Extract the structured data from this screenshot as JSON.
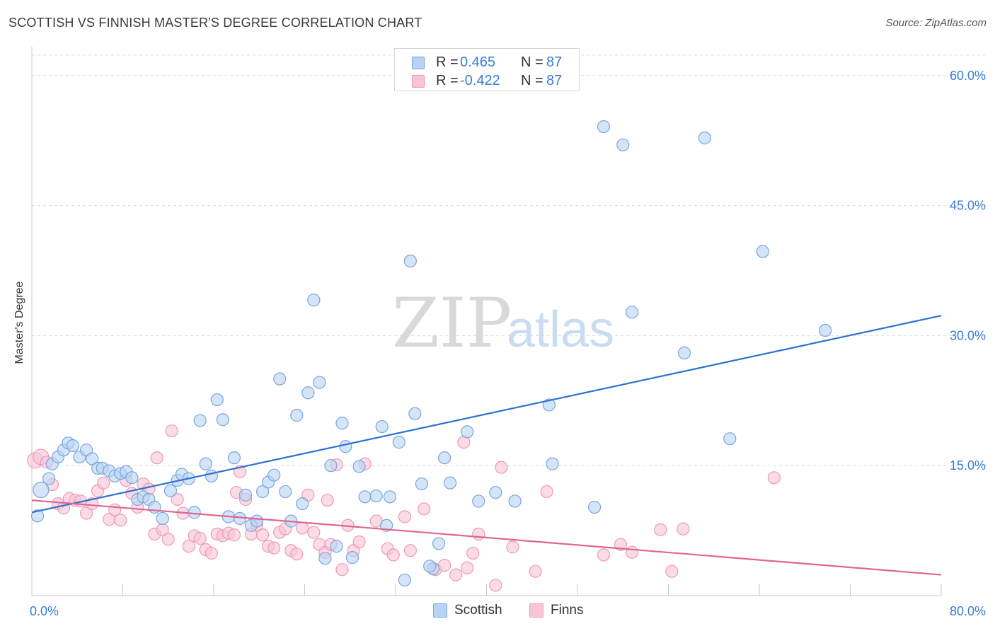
{
  "title": "SCOTTISH VS FINNISH MASTER'S DEGREE CORRELATION CHART",
  "source": "Source: ZipAtlas.com",
  "watermark": {
    "part1": "ZIP",
    "part2": "atlas"
  },
  "legend_top": {
    "rows": [
      {
        "swatch_fill": "#b8d3f3",
        "swatch_stroke": "#7aa6dc",
        "r_label": "R =",
        "r_value": "0.465",
        "n_label": "N =",
        "n_value": "87"
      },
      {
        "swatch_fill": "#f9c5d6",
        "swatch_stroke": "#ee9ab5",
        "r_label": "R =",
        "r_value": "-0.422",
        "n_label": "N =",
        "n_value": "87"
      }
    ]
  },
  "legend_bottom": {
    "items": [
      {
        "label": "Scottish",
        "swatch_fill": "#b8d3f3",
        "swatch_stroke": "#7aa6dc"
      },
      {
        "label": "Finns",
        "swatch_fill": "#f9c5d6",
        "swatch_stroke": "#ee9ab5"
      }
    ]
  },
  "chart_data": {
    "type": "scatter",
    "title": "SCOTTISH VS FINNISH MASTER'S DEGREE CORRELATION CHART",
    "xlabel": "",
    "ylabel": "Master's Degree",
    "xlim": [
      0,
      80
    ],
    "ylim": [
      0,
      63
    ],
    "x_tick_labels": [
      {
        "value": 0,
        "label": "0.0%"
      },
      {
        "value": 80,
        "label": "80.0%"
      }
    ],
    "y_tick_labels": [
      {
        "value": 15,
        "label": "15.0%"
      },
      {
        "value": 30,
        "label": "30.0%"
      },
      {
        "value": 45,
        "label": "45.0%"
      },
      {
        "value": 60,
        "label": "60.0%"
      }
    ],
    "grid": "horizontal dashed",
    "legend_position": "top-center",
    "series": [
      {
        "name": "Scottish",
        "color": "#7aa6dc",
        "fill": "#b8d3f3",
        "line_color": "#2d72d2",
        "r": 0.465,
        "n": 87,
        "trend": {
          "x": [
            0,
            80
          ],
          "y": [
            9.6,
            32.3
          ]
        },
        "points": [
          [
            0.5,
            9.2
          ],
          [
            0.8,
            12.2
          ],
          [
            1.5,
            13.5
          ],
          [
            1.8,
            15.2
          ],
          [
            2.3,
            16.0
          ],
          [
            2.8,
            16.8
          ],
          [
            3.2,
            17.6
          ],
          [
            3.6,
            17.3
          ],
          [
            4.2,
            16.0
          ],
          [
            4.8,
            16.8
          ],
          [
            5.3,
            15.8
          ],
          [
            5.8,
            14.7
          ],
          [
            6.2,
            14.7
          ],
          [
            6.8,
            14.4
          ],
          [
            7.3,
            13.8
          ],
          [
            7.8,
            14.1
          ],
          [
            8.3,
            14.3
          ],
          [
            8.8,
            13.6
          ],
          [
            9.3,
            11.1
          ],
          [
            9.8,
            11.4
          ],
          [
            10.3,
            11.1
          ],
          [
            10.8,
            10.2
          ],
          [
            11.5,
            8.9
          ],
          [
            12.2,
            12.1
          ],
          [
            12.8,
            13.3
          ],
          [
            13.2,
            14.0
          ],
          [
            13.8,
            13.5
          ],
          [
            14.3,
            9.6
          ],
          [
            14.8,
            20.2
          ],
          [
            15.3,
            15.2
          ],
          [
            15.8,
            13.8
          ],
          [
            16.3,
            22.6
          ],
          [
            16.8,
            20.3
          ],
          [
            17.3,
            9.1
          ],
          [
            17.8,
            15.9
          ],
          [
            18.3,
            8.9
          ],
          [
            18.8,
            11.6
          ],
          [
            19.3,
            8.1
          ],
          [
            19.8,
            8.6
          ],
          [
            20.3,
            12.0
          ],
          [
            20.8,
            13.1
          ],
          [
            21.3,
            13.9
          ],
          [
            21.8,
            25.0
          ],
          [
            22.3,
            12.0
          ],
          [
            22.8,
            8.6
          ],
          [
            23.3,
            20.8
          ],
          [
            23.8,
            10.6
          ],
          [
            24.3,
            23.4
          ],
          [
            24.8,
            34.1
          ],
          [
            25.3,
            24.6
          ],
          [
            25.8,
            4.3
          ],
          [
            26.3,
            15.0
          ],
          [
            26.8,
            5.7
          ],
          [
            27.3,
            19.9
          ],
          [
            27.6,
            17.2
          ],
          [
            28.2,
            4.4
          ],
          [
            28.8,
            14.9
          ],
          [
            29.3,
            11.4
          ],
          [
            30.3,
            11.5
          ],
          [
            30.8,
            19.5
          ],
          [
            31.2,
            8.1
          ],
          [
            31.5,
            11.4
          ],
          [
            32.3,
            17.7
          ],
          [
            32.8,
            1.8
          ],
          [
            33.3,
            38.6
          ],
          [
            33.7,
            21.0
          ],
          [
            34.3,
            12.9
          ],
          [
            35.3,
            3.1
          ],
          [
            35.8,
            6.0
          ],
          [
            36.3,
            15.9
          ],
          [
            36.8,
            13.0
          ],
          [
            38.3,
            18.9
          ],
          [
            39.3,
            10.9
          ],
          [
            40.8,
            11.9
          ],
          [
            42.5,
            10.9
          ],
          [
            45.5,
            22.0
          ],
          [
            45.8,
            15.2
          ],
          [
            49.5,
            10.2
          ],
          [
            50.3,
            54.1
          ],
          [
            52.0,
            52.0
          ],
          [
            52.8,
            32.7
          ],
          [
            57.4,
            28.0
          ],
          [
            59.2,
            52.8
          ],
          [
            61.4,
            18.1
          ],
          [
            64.3,
            39.7
          ],
          [
            69.8,
            30.6
          ],
          [
            35.0,
            3.4
          ]
        ]
      },
      {
        "name": "Finns",
        "color": "#ee9ab5",
        "fill": "#f9c5d6",
        "line_color": "#e06592",
        "r": -0.422,
        "n": 87,
        "trend": {
          "x": [
            0,
            80
          ],
          "y": [
            11.0,
            2.4
          ]
        },
        "points": [
          [
            0.3,
            15.6
          ],
          [
            0.8,
            16.0
          ],
          [
            1.3,
            15.4
          ],
          [
            1.8,
            12.8
          ],
          [
            2.3,
            10.6
          ],
          [
            2.8,
            10.1
          ],
          [
            3.3,
            11.2
          ],
          [
            3.8,
            11.0
          ],
          [
            4.3,
            10.9
          ],
          [
            4.8,
            9.5
          ],
          [
            5.3,
            10.6
          ],
          [
            5.8,
            12.1
          ],
          [
            6.3,
            13.0
          ],
          [
            6.8,
            8.8
          ],
          [
            7.3,
            9.9
          ],
          [
            7.8,
            8.7
          ],
          [
            8.3,
            13.3
          ],
          [
            8.8,
            11.8
          ],
          [
            9.3,
            10.2
          ],
          [
            9.8,
            12.9
          ],
          [
            10.3,
            12.3
          ],
          [
            10.8,
            7.1
          ],
          [
            11.0,
            15.9
          ],
          [
            11.5,
            7.6
          ],
          [
            12.0,
            6.5
          ],
          [
            12.3,
            19.0
          ],
          [
            12.8,
            11.1
          ],
          [
            13.3,
            9.5
          ],
          [
            13.8,
            5.7
          ],
          [
            14.3,
            6.9
          ],
          [
            14.8,
            6.6
          ],
          [
            15.3,
            5.3
          ],
          [
            15.8,
            4.9
          ],
          [
            16.3,
            7.1
          ],
          [
            16.8,
            6.9
          ],
          [
            17.3,
            7.2
          ],
          [
            17.8,
            7.0
          ],
          [
            18.0,
            11.9
          ],
          [
            18.3,
            14.3
          ],
          [
            18.8,
            11.1
          ],
          [
            19.3,
            7.1
          ],
          [
            19.8,
            8.1
          ],
          [
            20.3,
            7.0
          ],
          [
            20.8,
            5.7
          ],
          [
            21.3,
            5.5
          ],
          [
            21.8,
            7.3
          ],
          [
            22.3,
            7.7
          ],
          [
            22.8,
            5.2
          ],
          [
            23.3,
            4.8
          ],
          [
            23.8,
            7.8
          ],
          [
            24.3,
            11.6
          ],
          [
            24.8,
            7.3
          ],
          [
            25.3,
            5.9
          ],
          [
            25.8,
            5.0
          ],
          [
            26.3,
            5.9
          ],
          [
            26.8,
            15.1
          ],
          [
            27.3,
            3.0
          ],
          [
            27.8,
            8.1
          ],
          [
            28.3,
            5.2
          ],
          [
            28.8,
            6.2
          ],
          [
            29.3,
            15.2
          ],
          [
            30.3,
            8.6
          ],
          [
            31.3,
            5.4
          ],
          [
            31.8,
            4.7
          ],
          [
            32.8,
            9.1
          ],
          [
            33.3,
            5.2
          ],
          [
            34.5,
            10.0
          ],
          [
            35.5,
            3.0
          ],
          [
            36.3,
            3.5
          ],
          [
            37.3,
            2.4
          ],
          [
            38.0,
            17.7
          ],
          [
            38.3,
            3.2
          ],
          [
            38.8,
            4.9
          ],
          [
            39.3,
            7.1
          ],
          [
            40.8,
            1.2
          ],
          [
            41.3,
            14.8
          ],
          [
            42.3,
            5.6
          ],
          [
            44.3,
            2.8
          ],
          [
            45.3,
            12.0
          ],
          [
            50.3,
            4.7
          ],
          [
            51.8,
            5.9
          ],
          [
            52.8,
            5.0
          ],
          [
            55.3,
            7.6
          ],
          [
            56.3,
            2.8
          ],
          [
            57.3,
            7.7
          ],
          [
            65.3,
            13.6
          ],
          [
            26.0,
            11.0
          ]
        ]
      }
    ]
  }
}
